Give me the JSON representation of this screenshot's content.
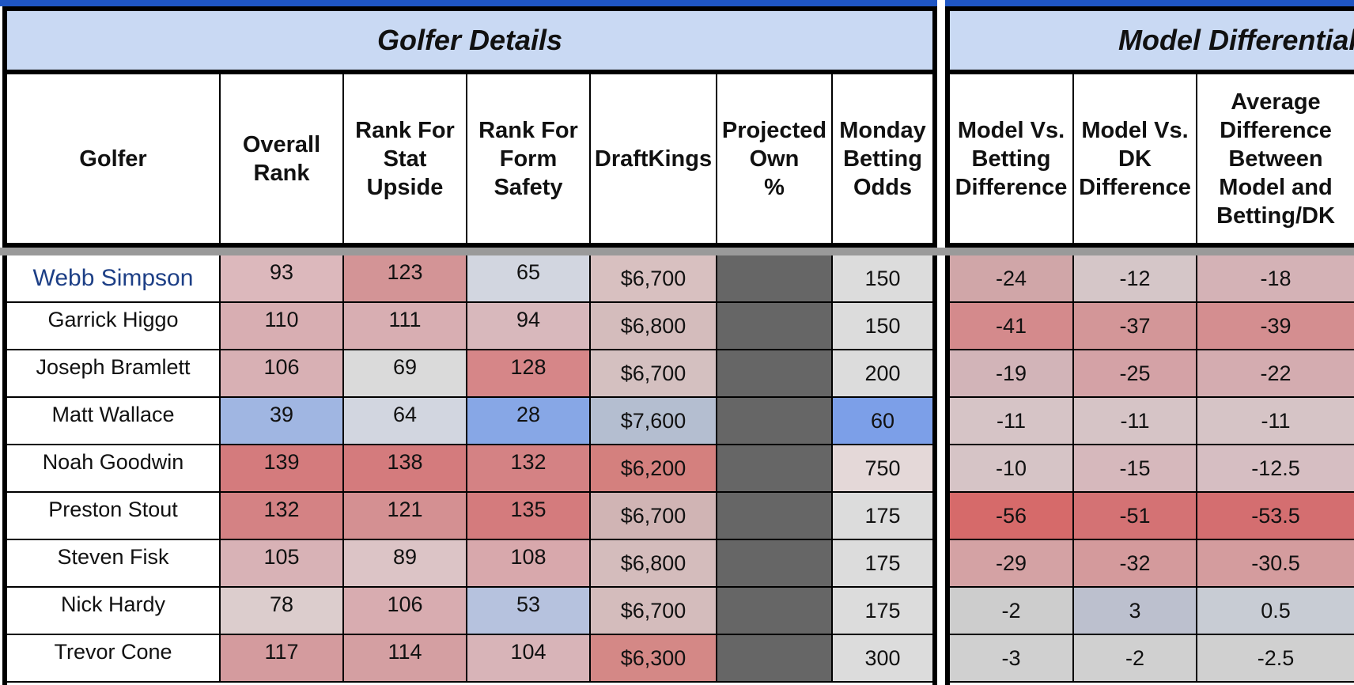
{
  "section_titles": {
    "golfer_details": "Golfer Details",
    "model_differential": "Model Differential"
  },
  "headers": [
    "Golfer",
    "Overall Rank",
    "Rank For Stat Upside",
    "Rank For Form Safety",
    "DraftKings",
    "Projected Own %",
    "Monday Betting Odds",
    "Model Vs. Betting Difference",
    "Model Vs. DK Difference",
    "Average Difference Between Model and Betting/DK"
  ],
  "rows": [
    {
      "golfer": "Webb Simpson",
      "overall": "93",
      "stat": "123",
      "form": "65",
      "dk": "$6,700",
      "own": "",
      "odds": "150",
      "vs_bet": "-24",
      "vs_dk": "-12",
      "avg": "-18"
    },
    {
      "golfer": "Garrick Higgo",
      "overall": "110",
      "stat": "111",
      "form": "94",
      "dk": "$6,800",
      "own": "",
      "odds": "150",
      "vs_bet": "-41",
      "vs_dk": "-37",
      "avg": "-39"
    },
    {
      "golfer": "Joseph Bramlett",
      "overall": "106",
      "stat": "69",
      "form": "128",
      "dk": "$6,700",
      "own": "",
      "odds": "200",
      "vs_bet": "-19",
      "vs_dk": "-25",
      "avg": "-22"
    },
    {
      "golfer": "Matt Wallace",
      "overall": "39",
      "stat": "64",
      "form": "28",
      "dk": "$7,600",
      "own": "",
      "odds": "60",
      "vs_bet": "-11",
      "vs_dk": "-11",
      "avg": "-11"
    },
    {
      "golfer": "Noah Goodwin",
      "overall": "139",
      "stat": "138",
      "form": "132",
      "dk": "$6,200",
      "own": "",
      "odds": "750",
      "vs_bet": "-10",
      "vs_dk": "-15",
      "avg": "-12.5"
    },
    {
      "golfer": "Preston Stout",
      "overall": "132",
      "stat": "121",
      "form": "135",
      "dk": "$6,700",
      "own": "",
      "odds": "175",
      "vs_bet": "-56",
      "vs_dk": "-51",
      "avg": "-53.5"
    },
    {
      "golfer": "Steven Fisk",
      "overall": "105",
      "stat": "89",
      "form": "108",
      "dk": "$6,800",
      "own": "",
      "odds": "175",
      "vs_bet": "-29",
      "vs_dk": "-32",
      "avg": "-30.5"
    },
    {
      "golfer": "Nick Hardy",
      "overall": "78",
      "stat": "106",
      "form": "53",
      "dk": "$6,700",
      "own": "",
      "odds": "175",
      "vs_bet": "-2",
      "vs_dk": "3",
      "avg": "0.5"
    },
    {
      "golfer": "Trevor Cone",
      "overall": "117",
      "stat": "114",
      "form": "104",
      "dk": "$6,300",
      "own": "",
      "odds": "300",
      "vs_bet": "-3",
      "vs_dk": "-2",
      "avg": "-2.5"
    }
  ],
  "cell_colors": [
    [
      "#dcb8bc",
      "#d39496",
      "#d2d6e0",
      "#d8c0c0",
      "#666666",
      "#dcdcdc",
      "#d0a6a8",
      "#d5c6c8",
      "#d4b2b6"
    ],
    [
      "#d8aeb2",
      "#d8aeb2",
      "#d8b8bc",
      "#d4bcbc",
      "#666666",
      "#dcdcdc",
      "#d48a8c",
      "#d39698",
      "#d48e90"
    ],
    [
      "#d8b0b4",
      "#dadada",
      "#d68688",
      "#d4c0c0",
      "#666666",
      "#dcdcdc",
      "#d2b4b8",
      "#d4a2a6",
      "#d4acb0"
    ],
    [
      "#a0b6e2",
      "#d2d6e0",
      "#87a7e6",
      "#b4bed0",
      "#666666",
      "#7c9fe8",
      "#d6c4c6",
      "#d6c4c6",
      "#d6c4c6"
    ],
    [
      "#d47b7d",
      "#d47b7d",
      "#d48284",
      "#d4807e",
      "#666666",
      "#e4d8d8",
      "#d6c4c6",
      "#d6b8bc",
      "#d6bec2"
    ],
    [
      "#d48284",
      "#d49092",
      "#d47b7d",
      "#d0b4b4",
      "#666666",
      "#dcdcdc",
      "#d66a6a",
      "#d47274",
      "#d46e70"
    ],
    [
      "#d8b2b6",
      "#dcc4c6",
      "#d8a8ac",
      "#d4bcbc",
      "#666666",
      "#dcdcdc",
      "#d4a2a4",
      "#d49a9c",
      "#d49c9e"
    ],
    [
      "#dccdcd",
      "#d8acb0",
      "#b6c2de",
      "#d4bcbc",
      "#666666",
      "#dcdcdc",
      "#cdcdcd",
      "#bcc0ce",
      "#c8ccd4"
    ],
    [
      "#d49b9e",
      "#d49fa2",
      "#d8b4b8",
      "#d48886",
      "#666666",
      "#dcdcdc",
      "#d0d0d0",
      "#d0d0d0",
      "#d0d0d0"
    ]
  ]
}
